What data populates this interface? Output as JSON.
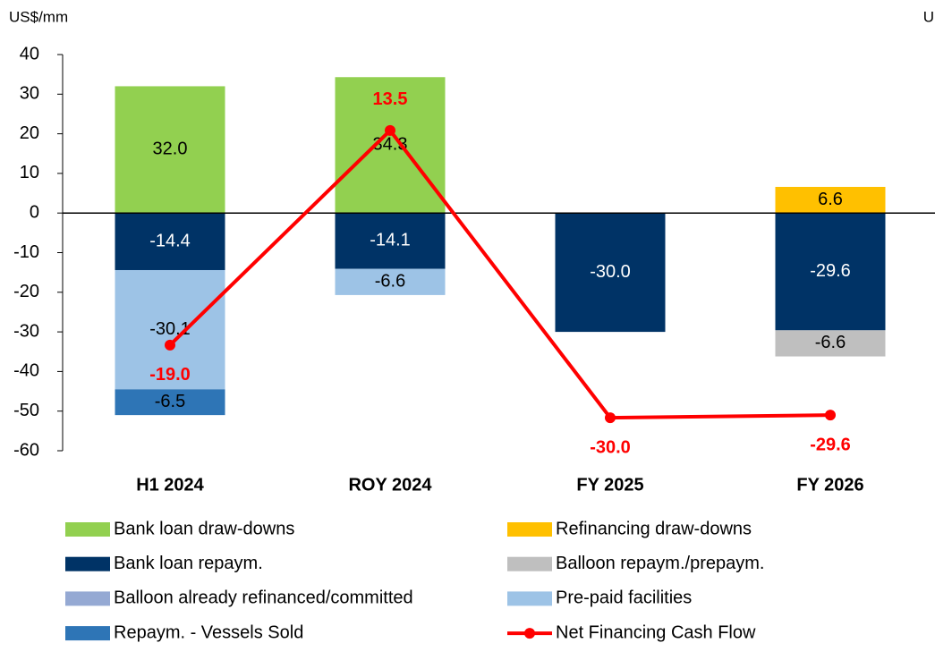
{
  "chart_data": {
    "type": "bar",
    "stacked": true,
    "y_label": "US$/mm",
    "y2_label": "U",
    "categories": [
      "H1 2024",
      "ROY 2024",
      "FY 2025",
      "FY 2026"
    ],
    "ylim": [
      -60,
      40
    ],
    "yticks": [
      -60,
      -50,
      -40,
      -30,
      -20,
      -10,
      0,
      10,
      20,
      30,
      40
    ],
    "y2lim": [
      -35,
      25
    ],
    "series": [
      {
        "name": "Bank loan draw-downs",
        "color": "#92d050",
        "values": [
          32.0,
          34.3,
          null,
          null
        ],
        "value_labels": [
          "32.0",
          "34.3",
          null,
          null
        ]
      },
      {
        "name": "Refinancing draw-downs",
        "color": "#ffc000",
        "values": [
          null,
          null,
          null,
          6.6
        ],
        "value_labels": [
          null,
          null,
          null,
          "6.6"
        ]
      },
      {
        "name": "Bank loan repaym.",
        "color": "#003366",
        "values": [
          -14.4,
          -14.1,
          -30.0,
          -29.6
        ],
        "value_labels": [
          "-14.4",
          "-14.1",
          "-30.0",
          "-29.6"
        ]
      },
      {
        "name": "Balloon repaym./prepaym.",
        "color": "#bfbfbf",
        "values": [
          null,
          null,
          null,
          -6.6
        ],
        "value_labels": [
          null,
          null,
          null,
          "-6.6"
        ]
      },
      {
        "name": "Balloon already refinanced/committed",
        "color": "#95a9d3",
        "values": [
          null,
          null,
          null,
          null
        ]
      },
      {
        "name": "Pre-paid facilities",
        "color": "#9dc3e6",
        "values": [
          -30.1,
          -6.6,
          null,
          null
        ],
        "value_labels": [
          "-30.1",
          "-6.6",
          null,
          null
        ]
      },
      {
        "name": "Repaym. - Vessels Sold",
        "color": "#2e75b6",
        "values": [
          -6.5,
          null,
          null,
          null
        ],
        "value_labels": [
          "-6.5",
          null,
          null,
          null
        ]
      },
      {
        "name": "Net Financing Cash Flow",
        "type": "line",
        "axis": "y2",
        "color": "#ff0000",
        "values": [
          -19.0,
          13.5,
          -30.0,
          -29.6
        ],
        "value_labels": [
          "-19.0",
          "13.5",
          "-30.0",
          "-29.6"
        ]
      }
    ]
  }
}
